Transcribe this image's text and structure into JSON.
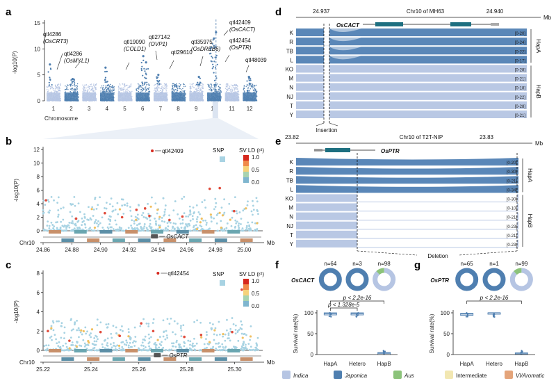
{
  "panel_labels": [
    "a",
    "b",
    "c",
    "d",
    "e",
    "f",
    "g"
  ],
  "chart_data": [
    {
      "id": "a",
      "type": "scatter",
      "subtype": "manhattan",
      "ylabel": "-log10(P)",
      "xlabel": "Chromosome",
      "ylim": [
        0,
        15
      ],
      "yticks": [
        0,
        5,
        10,
        15
      ],
      "chromosomes": [
        "1",
        "2",
        "3",
        "4",
        "5",
        "6",
        "7",
        "8",
        "9",
        "10",
        "11",
        "12"
      ],
      "peaks": [
        {
          "chr": "1",
          "y": 7.0
        },
        {
          "chr": "2",
          "y": 4.2
        },
        {
          "chr": "4",
          "y": 6.4
        },
        {
          "chr": "6",
          "y": 7.4
        },
        {
          "chr": "6",
          "y": 8.6
        },
        {
          "chr": "7",
          "y": 5.0
        },
        {
          "chr": "9",
          "y": 4.6
        },
        {
          "chr": "10",
          "y": 12.0
        },
        {
          "chr": "10",
          "y": 10.3
        },
        {
          "chr": "10",
          "y": 13.2
        },
        {
          "chr": "12",
          "y": 4.6
        }
      ],
      "annotations": [
        {
          "lines": [
            "qtl4286",
            "(OsCRT3)"
          ],
          "chr": "1"
        },
        {
          "lines": [
            "qtl4286",
            "(OsMYL1)"
          ],
          "chr": "2"
        },
        {
          "lines": [
            "qtl19090",
            "(COLD1)"
          ],
          "chr": "4"
        },
        {
          "lines": [
            "qtl27142",
            "(OVP1)"
          ],
          "chr": "6"
        },
        {
          "lines": [
            "qtl29610"
          ],
          "chr": "7"
        },
        {
          "lines": [
            "qtl35975",
            "(OsDREB6)"
          ],
          "chr": "9"
        },
        {
          "lines": [
            "qtl42409",
            "(OsCACT)"
          ],
          "chr": "10"
        },
        {
          "lines": [
            "qtl42454",
            "(OsPTR)"
          ],
          "chr": "10"
        },
        {
          "lines": [
            "qtl48039"
          ],
          "chr": "12"
        }
      ],
      "colors": [
        "#b6c5e3",
        "#4f7fb0"
      ]
    },
    {
      "id": "b",
      "type": "scatter",
      "subtype": "regional_association",
      "ylabel": "-log10(P)",
      "xlabel": "Mb",
      "chromosome_label": "Chr10",
      "xlim": [
        24.86,
        25.01
      ],
      "xticks": [
        24.86,
        24.88,
        24.9,
        24.92,
        24.94,
        24.96,
        24.98,
        25.0
      ],
      "ylim": [
        0,
        12
      ],
      "yticks": [
        0,
        2,
        4,
        6,
        8,
        10,
        12
      ],
      "lead": {
        "label": "qtl42409",
        "x": 24.936,
        "y": 11.8
      },
      "gene": {
        "label": "OsCACT",
        "x": 24.938
      },
      "legend": {
        "snp_label": "SNP",
        "sv_label": "SV LD (r²)",
        "scale": [
          "1.0",
          "0.5",
          "0.0"
        ]
      },
      "red_points": [
        {
          "x": 24.862,
          "y": 4.5
        },
        {
          "x": 24.883,
          "y": 1.8
        },
        {
          "x": 24.903,
          "y": 2.6
        },
        {
          "x": 24.915,
          "y": 2.0
        },
        {
          "x": 24.925,
          "y": 3.1
        },
        {
          "x": 24.931,
          "y": 3.3
        },
        {
          "x": 24.934,
          "y": 2.2
        },
        {
          "x": 24.948,
          "y": 1.6
        },
        {
          "x": 24.957,
          "y": 2.1
        },
        {
          "x": 24.976,
          "y": 6.2
        },
        {
          "x": 24.983,
          "y": 6.3
        },
        {
          "x": 24.993,
          "y": 2.9
        }
      ]
    },
    {
      "id": "c",
      "type": "scatter",
      "subtype": "regional_association",
      "ylabel": "-log10(P)",
      "xlabel": "Mb",
      "chromosome_label": "Chr10",
      "xlim": [
        25.22,
        25.31
      ],
      "xticks": [
        25.22,
        25.24,
        25.26,
        25.28,
        25.3
      ],
      "ylim": [
        0,
        8
      ],
      "yticks": [
        0,
        2,
        4,
        6,
        8
      ],
      "lead": {
        "label": "qtl42454",
        "x": 25.268,
        "y": 8.0
      },
      "gene": {
        "label": "OsPTR",
        "x": 25.268
      },
      "legend": {
        "snp_label": "SNP",
        "sv_label": "SV LD (r²)",
        "scale": [
          "1.0",
          "0.5",
          "0.0"
        ]
      },
      "red_points": [
        {
          "x": 25.222,
          "y": 2.0
        },
        {
          "x": 25.231,
          "y": 1.0
        },
        {
          "x": 25.244,
          "y": 1.9
        },
        {
          "x": 25.252,
          "y": 1.5
        },
        {
          "x": 25.261,
          "y": 2.8
        },
        {
          "x": 25.266,
          "y": 2.0
        },
        {
          "x": 25.279,
          "y": 1.4
        },
        {
          "x": 25.286,
          "y": 1.6
        },
        {
          "x": 25.299,
          "y": 1.9
        },
        {
          "x": 25.303,
          "y": 6.3
        }
      ]
    },
    {
      "id": "d",
      "type": "area",
      "subtype": "coverage_tracks",
      "title": "Chr10 of MH63",
      "unit": "Mb",
      "start_label": "24.937",
      "end_label": "24.940",
      "gene": "OsCACT",
      "marker_label": "Insertion",
      "tracks": [
        {
          "name": "K",
          "range": "[0-20]",
          "group": "HapA"
        },
        {
          "name": "R",
          "range": "[0-24]",
          "group": "HapA"
        },
        {
          "name": "TB",
          "range": "[0-22]",
          "group": "HapA"
        },
        {
          "name": "L",
          "range": "[0-17]",
          "group": "HapA"
        },
        {
          "name": "KO",
          "range": "[0-28]",
          "group": "HapB"
        },
        {
          "name": "M",
          "range": "[0-21]",
          "group": "HapB"
        },
        {
          "name": "N",
          "range": "[0-18]",
          "group": "HapB"
        },
        {
          "name": "NJ",
          "range": "[0-22]",
          "group": "HapB"
        },
        {
          "name": "T",
          "range": "[0-28]",
          "group": "HapB"
        },
        {
          "name": "Y",
          "range": "[0-21]",
          "group": "HapB"
        }
      ],
      "groups": [
        "HapA",
        "HapB"
      ]
    },
    {
      "id": "e",
      "type": "area",
      "subtype": "coverage_tracks",
      "title": "Chr10 of T2T-NIP",
      "unit": "Mb",
      "start_label": "23.82",
      "end_label": "23.83",
      "gene": "OsPTR",
      "marker_label": "Deletion",
      "tracks": [
        {
          "name": "K",
          "range": "[0-20]",
          "group": "HapA"
        },
        {
          "name": "R",
          "range": "[0-30]",
          "group": "HapA"
        },
        {
          "name": "TB",
          "range": "[0-21]",
          "group": "HapA"
        },
        {
          "name": "L",
          "range": "[0-34]",
          "group": "HapA"
        },
        {
          "name": "KO",
          "range": "[0-30]",
          "group": "HapB"
        },
        {
          "name": "M",
          "range": "[0-10]",
          "group": "HapB"
        },
        {
          "name": "N",
          "range": "[0-21]",
          "group": "HapB"
        },
        {
          "name": "NJ",
          "range": "[0-23]",
          "group": "HapB"
        },
        {
          "name": "T",
          "range": "[0-21]",
          "group": "HapB"
        },
        {
          "name": "Y",
          "range": "[0-23]",
          "group": "HapB"
        }
      ],
      "groups": [
        "HapA",
        "HapB"
      ]
    },
    {
      "id": "f",
      "type": "box",
      "gene": "OsCACT",
      "ylabel": "Survival rate(%)",
      "ylim": [
        0,
        100
      ],
      "yticks": [
        0,
        50,
        100
      ],
      "categories": [
        "HapA",
        "Hetero",
        "HapB"
      ],
      "counts": [
        "n=64",
        "n=3",
        "n=98"
      ],
      "donuts": [
        {
          "japonica": 1.0,
          "indica": 0.0,
          "aus": 0.0
        },
        {
          "japonica": 1.0,
          "indica": 0.0,
          "aus": 0.0
        },
        {
          "japonica": 0.0,
          "indica": 0.88,
          "aus": 0.12
        }
      ],
      "medians": [
        98,
        98,
        3
      ],
      "comparisons": [
        {
          "label": "p < 2.2e-16",
          "from": "HapA",
          "to": "HapB"
        },
        {
          "label": "p < 1.328e-5",
          "from": "HapA",
          "to": "Hetero"
        }
      ]
    },
    {
      "id": "g",
      "type": "box",
      "gene": "OsPTR",
      "ylabel": "Survival rate(%)",
      "ylim": [
        0,
        100
      ],
      "yticks": [
        0,
        50,
        100
      ],
      "categories": [
        "HapA",
        "Hetero",
        "HapB"
      ],
      "counts": [
        "n=65",
        "n=1",
        "n=99"
      ],
      "donuts": [
        {
          "japonica": 1.0,
          "indica": 0.0,
          "aus": 0.0
        },
        {
          "japonica": 1.0,
          "indica": 0.0,
          "aus": 0.0
        },
        {
          "japonica": 0.0,
          "indica": 0.88,
          "aus": 0.12
        }
      ],
      "medians": [
        97,
        100,
        2
      ],
      "comparisons": [
        {
          "label": "p < 2.2e-16",
          "from": "HapA",
          "to": "HapB"
        }
      ]
    }
  ],
  "legend": {
    "items": [
      {
        "label": "Indica",
        "color": "#b6c5e3",
        "italic": true
      },
      {
        "label": "Japonica",
        "color": "#4f7fb0",
        "italic": true
      },
      {
        "label": "Aus",
        "color": "#8cc37a",
        "italic": true
      },
      {
        "label": "Intermediate",
        "color": "#f2e7b2",
        "italic": false
      },
      {
        "label": "VI/Aromatic",
        "color": "#e4a47a",
        "italic": true
      }
    ]
  }
}
